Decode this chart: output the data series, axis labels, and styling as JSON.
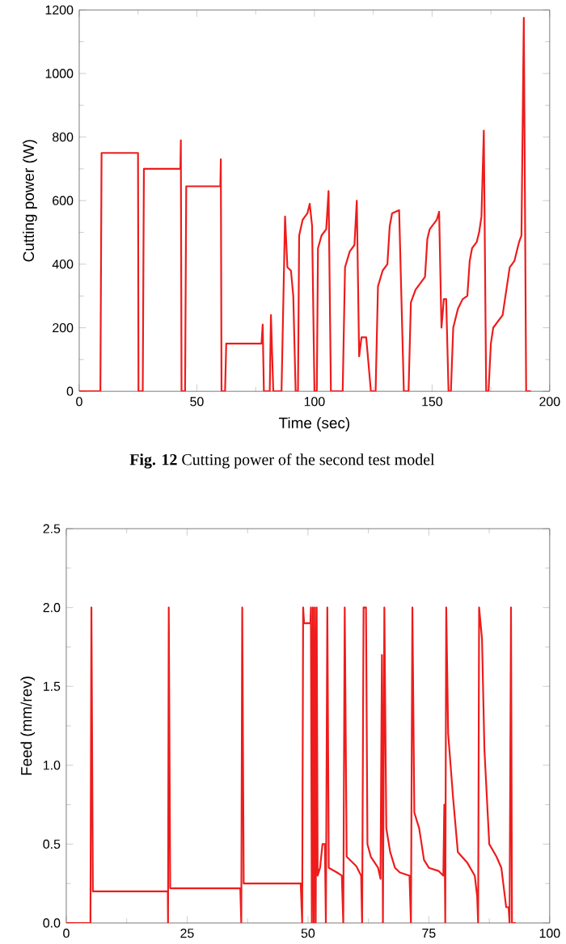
{
  "chart_data": [
    {
      "type": "line",
      "xlabel": "Time (sec)",
      "ylabel": "Cutting power (W)",
      "xlim": [
        0,
        200
      ],
      "ylim": [
        0,
        1200
      ],
      "xticks": [
        0,
        50,
        100,
        150,
        200
      ],
      "yticks": [
        0,
        200,
        400,
        600,
        800,
        1000,
        1200
      ],
      "marker": "none",
      "line_style": "solid",
      "annotations": [
        "**Fig. 12** Cutting power of the second test model"
      ],
      "series": [
        {
          "color": "#ee1c1c",
          "x": [
            0,
            9,
            9.5,
            25,
            25.2,
            27,
            27.5,
            43,
            43.2,
            43.5,
            45,
            45.5,
            60,
            60.2,
            60.5,
            62,
            62.5,
            77.5,
            78,
            78.5,
            81,
            81.5,
            82.5,
            86,
            87.5,
            88.5,
            90,
            91,
            92,
            93,
            93.5,
            95,
            97,
            98,
            99,
            100,
            101,
            101.5,
            103,
            105,
            106,
            107,
            112,
            113,
            115,
            117,
            118,
            119,
            120,
            122,
            124,
            126,
            127,
            129,
            131,
            132,
            133,
            136,
            138,
            140,
            141,
            143,
            145,
            147,
            148,
            149,
            152,
            153,
            154,
            155,
            156,
            157,
            158,
            159,
            161,
            163,
            165,
            166,
            167,
            169,
            170,
            171,
            172,
            173,
            174,
            175,
            176,
            178,
            180,
            181,
            183,
            185,
            187,
            188,
            189,
            190,
            192
          ],
          "values": [
            0,
            0,
            750,
            750,
            0,
            0,
            700,
            700,
            790,
            0,
            0,
            645,
            645,
            730,
            0,
            0,
            150,
            150,
            210,
            0,
            0,
            240,
            0,
            0,
            550,
            390,
            380,
            300,
            0,
            0,
            490,
            540,
            560,
            590,
            520,
            0,
            0,
            450,
            490,
            510,
            630,
            0,
            0,
            390,
            440,
            460,
            600,
            110,
            170,
            170,
            0,
            0,
            330,
            380,
            400,
            520,
            560,
            570,
            0,
            0,
            280,
            320,
            340,
            360,
            480,
            510,
            540,
            565,
            200,
            290,
            290,
            0,
            0,
            200,
            260,
            290,
            300,
            410,
            450,
            470,
            500,
            550,
            820,
            0,
            0,
            150,
            200,
            220,
            240,
            290,
            390,
            410,
            470,
            490,
            1175,
            0,
            0
          ]
        }
      ]
    },
    {
      "type": "line",
      "ylabel": "Feed (mm/rev)",
      "xlim": [
        0,
        100
      ],
      "ylim": [
        0,
        2.5
      ],
      "xticks": [
        0,
        25,
        50,
        75,
        100
      ],
      "yticks": [
        {
          "value": 0,
          "label": "0.0"
        },
        {
          "value": 0.5,
          "label": "0.5"
        },
        {
          "value": 1,
          "label": "1.0"
        },
        {
          "value": 1.5,
          "label": "1.5"
        },
        {
          "value": 2,
          "label": "2.0"
        },
        {
          "value": 2.5,
          "label": "2.5"
        }
      ],
      "marker": "none",
      "line_style": "solid",
      "series": [
        {
          "color": "#ee1c1c",
          "x": [
            0,
            5,
            5.2,
            5.5,
            21,
            21.05,
            21.2,
            21.5,
            36,
            36.2,
            36.4,
            36.7,
            48.5,
            48.8,
            49,
            49.2,
            50.5,
            50.6,
            50.8,
            51,
            51.2,
            51.4,
            51.6,
            51.8,
            52,
            52.5,
            53,
            53.5,
            53.7,
            54,
            54.3,
            56,
            57,
            57.3,
            57.6,
            58,
            60,
            61,
            61.2,
            61.5,
            62,
            62.3,
            63,
            64.5,
            65,
            65.3,
            65.5,
            65.8,
            66.2,
            67,
            68,
            69,
            71,
            71.3,
            71.6,
            72,
            73,
            74,
            75,
            77,
            78,
            78.2,
            78.4,
            78.6,
            79,
            80,
            81,
            83,
            84.5,
            85,
            85.2,
            85.4,
            86,
            86.5,
            87.5,
            89,
            90,
            91,
            91.5,
            91.7,
            92,
            92.2,
            93
          ],
          "values": [
            0,
            0,
            2.0,
            0.2,
            0.2,
            0,
            2.0,
            0.22,
            0.22,
            0,
            2.0,
            0.25,
            0.25,
            0,
            2.0,
            1.9,
            1.9,
            2.0,
            0,
            2.0,
            0,
            2.0,
            0,
            2.0,
            0.3,
            0.35,
            0.5,
            0.5,
            0,
            2.0,
            0.35,
            0.32,
            0.3,
            0,
            2.0,
            0.42,
            0.36,
            0.3,
            0,
            2.0,
            2.0,
            0.5,
            0.42,
            0.35,
            0.28,
            1.7,
            0,
            2.0,
            0.6,
            0.45,
            0.35,
            0.32,
            0.3,
            0,
            2.0,
            0.7,
            0.6,
            0.4,
            0.35,
            0.33,
            0.3,
            0.75,
            0,
            2.0,
            1.2,
            0.8,
            0.45,
            0.38,
            0.3,
            0.17,
            0,
            2.0,
            1.8,
            1.1,
            0.5,
            0.42,
            0.35,
            0.1,
            0.1,
            0,
            2.0,
            0,
            0
          ]
        }
      ]
    }
  ]
}
